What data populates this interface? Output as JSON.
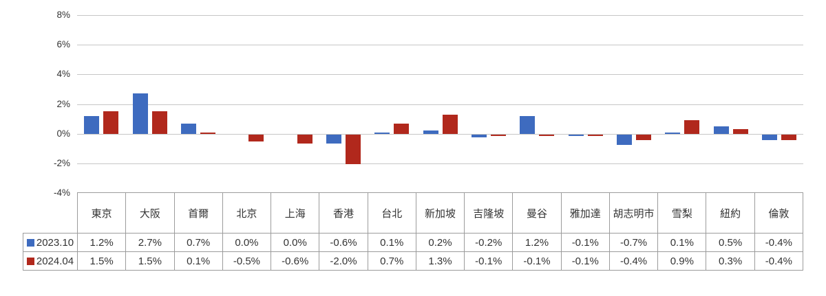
{
  "colors": {
    "series_2023_10": "#3E6BBF",
    "series_2024_04": "#B1281C",
    "gridline": "#c6c6c6",
    "table_border": "#9b9b9b",
    "text": "#333333",
    "background": "#ffffff"
  },
  "y_axis": {
    "tick_labels": [
      "8%",
      "6%",
      "4%",
      "2%",
      "0%",
      "-2%",
      "-4%"
    ],
    "tick_values": [
      8,
      6,
      4,
      2,
      0,
      -2,
      -4
    ]
  },
  "chart_data": {
    "type": "bar",
    "title": "",
    "xlabel": "",
    "ylabel": "",
    "grid": true,
    "ylim": [
      -4,
      8
    ],
    "ytick_step": 2,
    "legend_position": "table-row-headers",
    "categories": [
      "東京",
      "大阪",
      "首爾",
      "北京",
      "上海",
      "香港",
      "台北",
      "新加坡",
      "吉隆坡",
      "曼谷",
      "雅加達",
      "胡志明市",
      "雪梨",
      "紐約",
      "倫敦"
    ],
    "series": [
      {
        "name": "2023.10",
        "color": "#3E6BBF",
        "values": [
          1.2,
          2.7,
          0.7,
          0.0,
          0.0,
          -0.6,
          0.1,
          0.2,
          -0.2,
          1.2,
          -0.1,
          -0.7,
          0.1,
          0.5,
          -0.4
        ]
      },
      {
        "name": "2024.04",
        "color": "#B1281C",
        "values": [
          1.5,
          1.5,
          0.1,
          -0.5,
          -0.6,
          -2.0,
          0.7,
          1.3,
          -0.1,
          -0.1,
          -0.1,
          -0.4,
          0.9,
          0.3,
          -0.4
        ]
      }
    ]
  },
  "table": {
    "rows": [
      {
        "legend": "2023.10",
        "swatch_color": "#3E6BBF",
        "values": [
          "1.2%",
          "2.7%",
          "0.7%",
          "0.0%",
          "0.0%",
          "-0.6%",
          "0.1%",
          "0.2%",
          "-0.2%",
          "1.2%",
          "-0.1%",
          "-0.7%",
          "0.1%",
          "0.5%",
          "-0.4%"
        ]
      },
      {
        "legend": "2024.04",
        "swatch_color": "#B1281C",
        "values": [
          "1.5%",
          "1.5%",
          "0.1%",
          "-0.5%",
          "-0.6%",
          "-2.0%",
          "0.7%",
          "1.3%",
          "-0.1%",
          "-0.1%",
          "-0.1%",
          "-0.4%",
          "0.9%",
          "0.3%",
          "-0.4%"
        ]
      }
    ]
  }
}
